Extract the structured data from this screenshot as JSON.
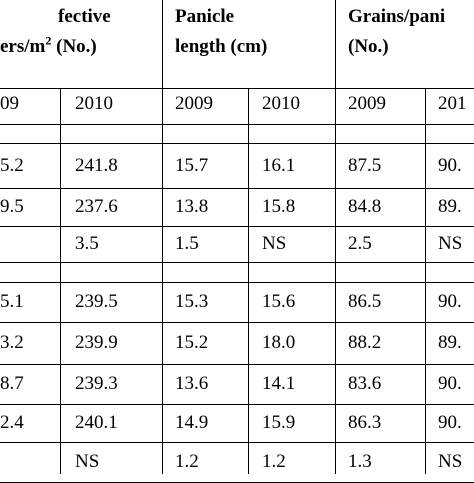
{
  "header": {
    "col_a": {
      "line1": "fective",
      "line2": "ers/m",
      "sup": "2",
      "line2_end": "(No.)"
    },
    "col_b": {
      "line1": "Panicle",
      "line2": "length (cm)"
    },
    "col_c": {
      "line1": "Grains/pani",
      "line2": "(No.)"
    }
  },
  "years": [
    "09",
    "2010",
    "2009",
    "2010",
    "2009",
    "201"
  ],
  "table": {
    "rows": [
      [
        "5.2",
        "241.8",
        "15.7",
        "16.1",
        "87.5",
        "90."
      ],
      [
        "9.5",
        "237.6",
        "13.8",
        "15.8",
        "84.8",
        "89."
      ],
      [
        null,
        "3.5",
        "1.5",
        "NS",
        "2.5",
        "NS"
      ],
      [
        "5.1",
        "239.5",
        "15.3",
        "15.6",
        "86.5",
        "90."
      ],
      [
        "3.2",
        "239.9",
        "15.2",
        "18.0",
        "88.2",
        "89."
      ],
      [
        "8.7",
        "239.3",
        "13.6",
        "14.1",
        "83.6",
        "90."
      ],
      [
        "2.4",
        "240.1",
        "14.9",
        "15.9",
        "86.3",
        "90."
      ],
      [
        null,
        "NS",
        "1.2",
        "1.2",
        "1.3",
        "NS"
      ]
    ]
  }
}
